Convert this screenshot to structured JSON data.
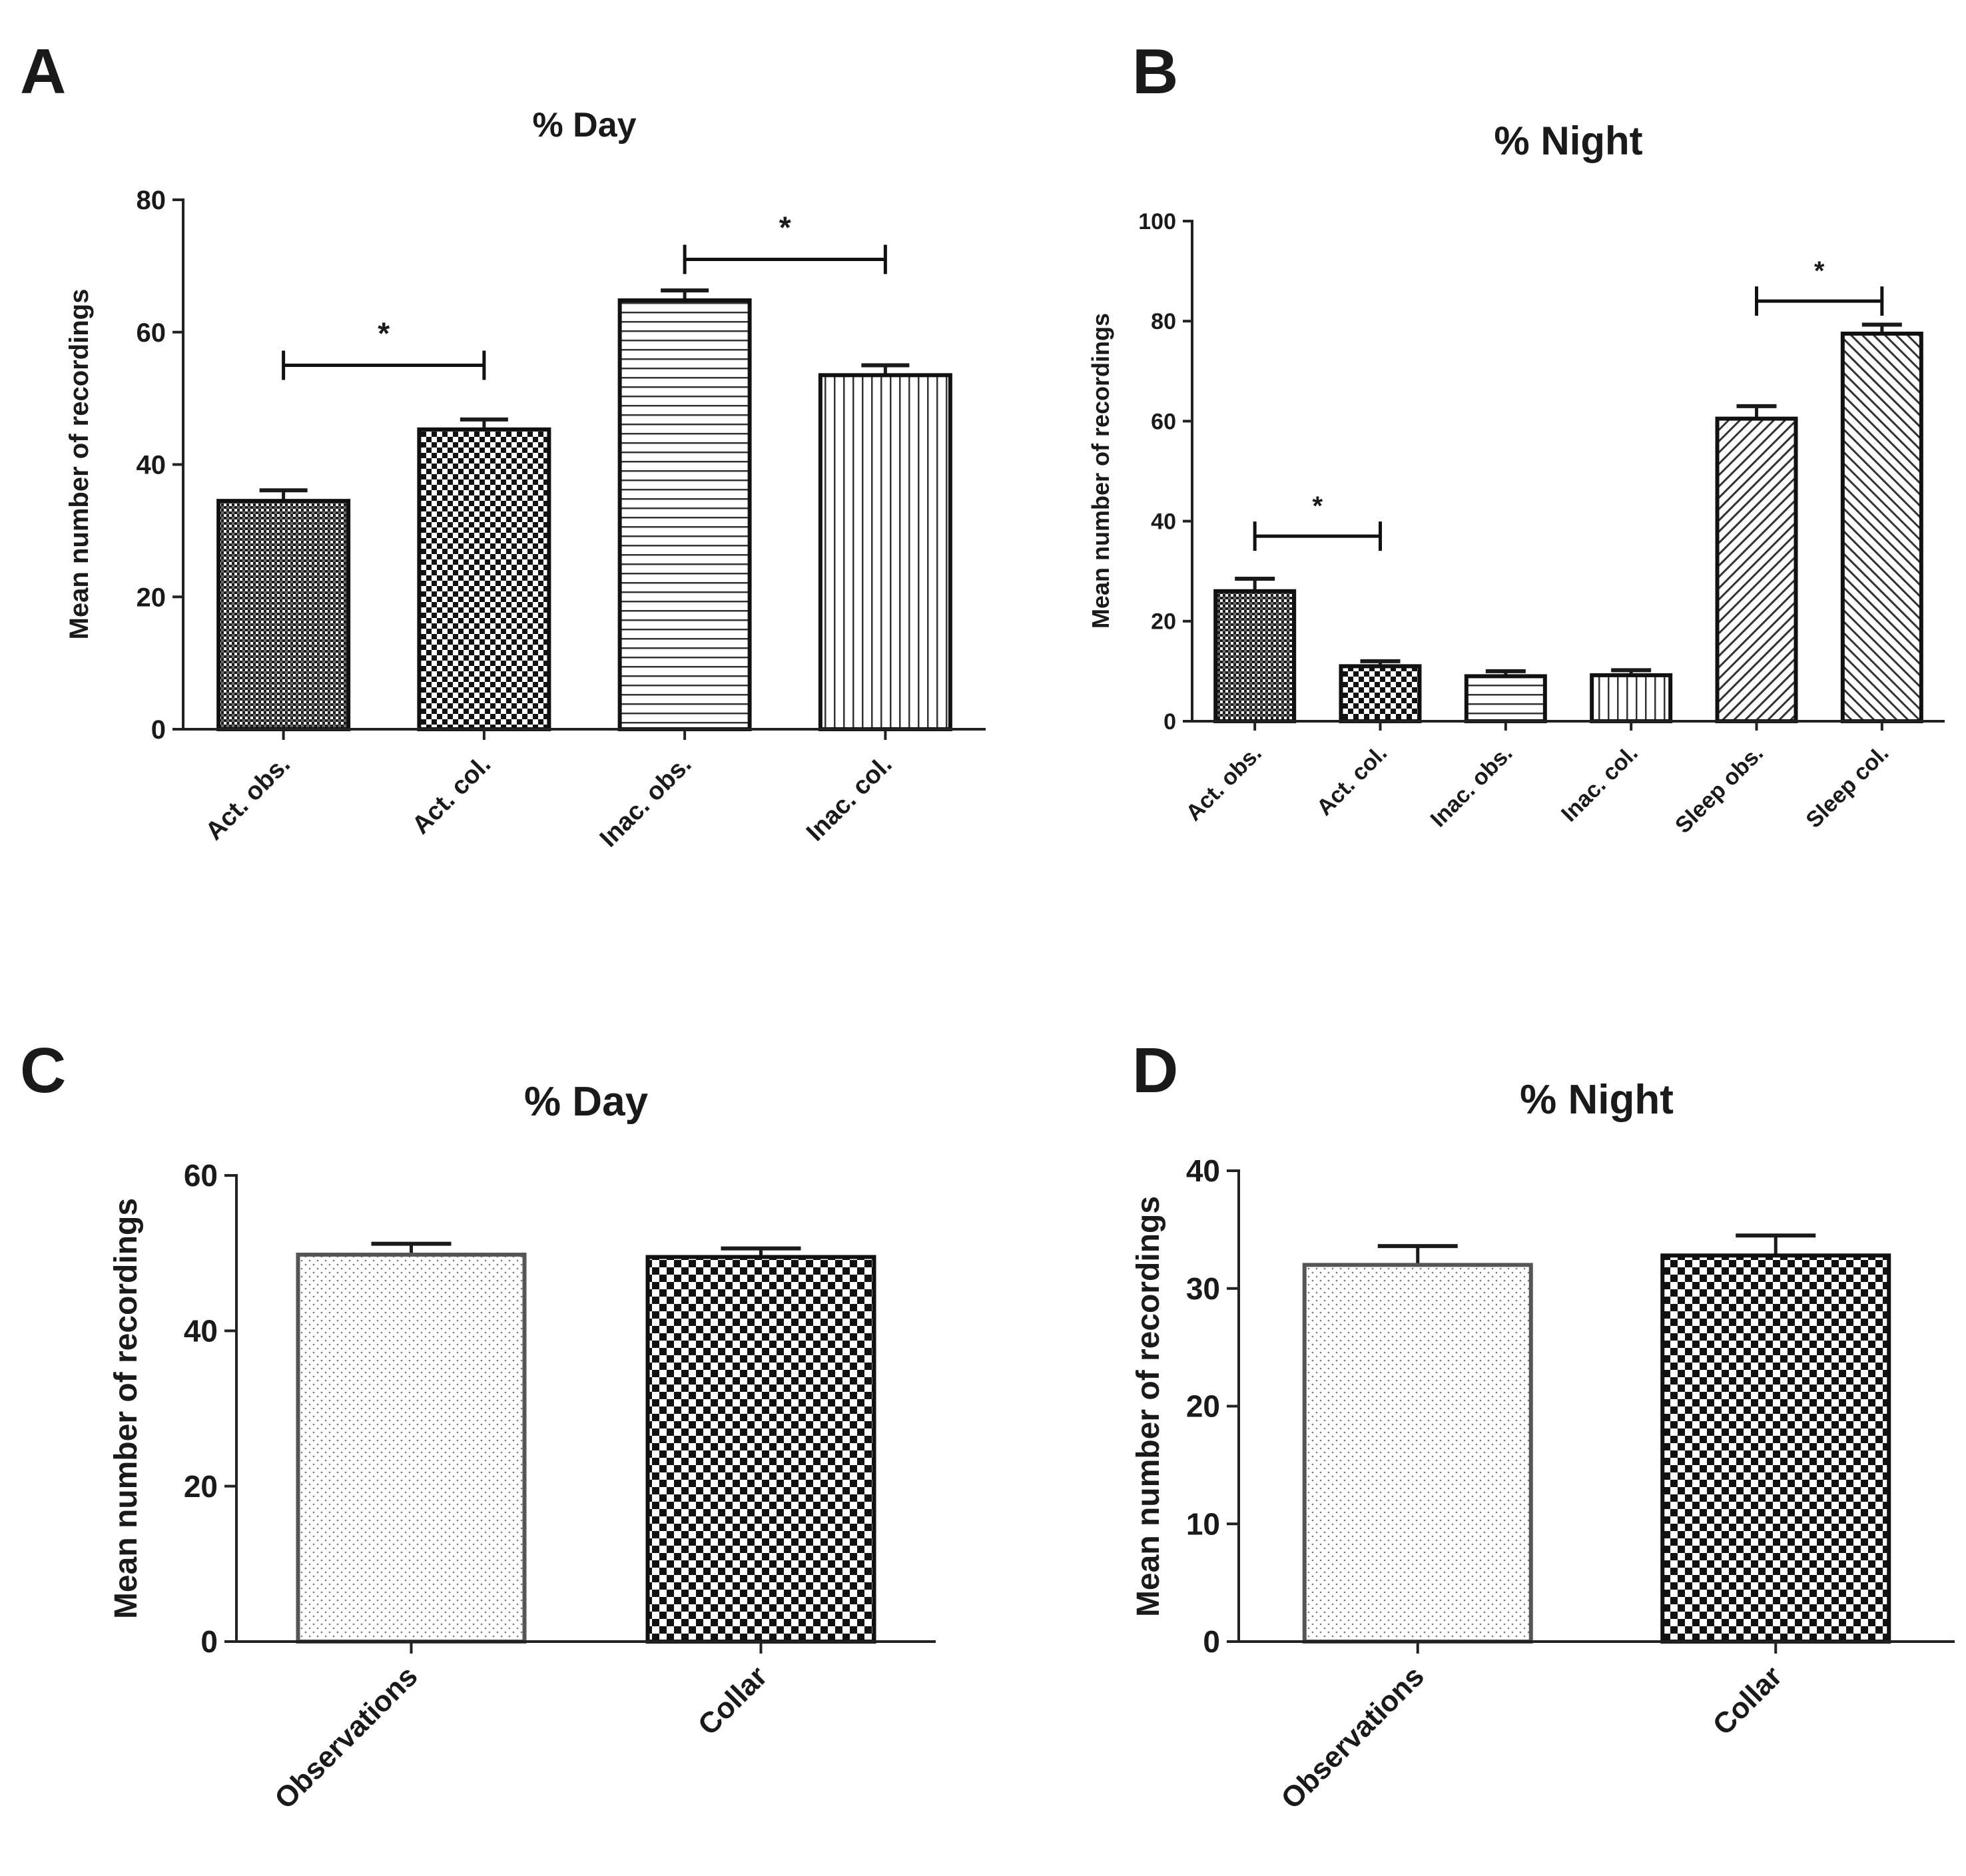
{
  "figure": {
    "panels": [
      "A",
      "B",
      "C",
      "D"
    ]
  },
  "chart_data": [
    {
      "panel": "A",
      "type": "bar",
      "title": "% Day",
      "ylabel": "Mean number of recordings",
      "xlabel": "",
      "ylim": [
        0,
        80
      ],
      "yticks": [
        0,
        20,
        40,
        60,
        80
      ],
      "categories": [
        "Act. obs.",
        "Act. col.",
        "Inac. obs.",
        "Inac. col."
      ],
      "values": [
        34.5,
        45.3,
        64.8,
        53.5
      ],
      "errors": [
        1.6,
        1.5,
        1.5,
        1.5
      ],
      "patterns": [
        "dense-check",
        "check",
        "hlines",
        "vlines"
      ],
      "significance": [
        {
          "from": 0,
          "to": 1,
          "y": 55,
          "label": "*"
        },
        {
          "from": 2,
          "to": 3,
          "y": 71,
          "label": "*"
        }
      ]
    },
    {
      "panel": "B",
      "type": "bar",
      "title": "% Night",
      "ylabel": "Mean number of recordings",
      "xlabel": "",
      "ylim": [
        0,
        100
      ],
      "yticks": [
        0,
        20,
        40,
        60,
        80,
        100
      ],
      "categories": [
        "Act. obs.",
        "Act. col.",
        "Inac. obs.",
        "Inac. col.",
        "Sleep obs.",
        "Sleep col."
      ],
      "values": [
        26,
        11,
        9,
        9.2,
        60.5,
        77.5
      ],
      "errors": [
        2.5,
        1.0,
        1.0,
        1.0,
        2.5,
        1.8
      ],
      "patterns": [
        "dense-check",
        "check",
        "hlines",
        "vlines",
        "diag",
        "diag-rev"
      ],
      "significance": [
        {
          "from": 0,
          "to": 1,
          "y": 37,
          "label": "*"
        },
        {
          "from": 4,
          "to": 5,
          "y": 84,
          "label": "*"
        }
      ]
    },
    {
      "panel": "C",
      "type": "bar",
      "title": "% Day",
      "ylabel": "Mean number of recordings",
      "xlabel": "",
      "ylim": [
        0,
        60
      ],
      "yticks": [
        0,
        20,
        40,
        60
      ],
      "categories": [
        "Observations",
        "Collar"
      ],
      "values": [
        49.8,
        49.5
      ],
      "errors": [
        1.4,
        1.1
      ],
      "patterns": [
        "dots",
        "big-check"
      ],
      "significance": []
    },
    {
      "panel": "D",
      "type": "bar",
      "title": "% Night",
      "ylabel": "Mean number of recordings",
      "xlabel": "",
      "ylim": [
        0,
        40
      ],
      "yticks": [
        0,
        10,
        20,
        30,
        40
      ],
      "categories": [
        "Observations",
        "Collar"
      ],
      "values": [
        32,
        32.8
      ],
      "errors": [
        1.6,
        1.7
      ],
      "patterns": [
        "dots",
        "big-check"
      ],
      "significance": []
    }
  ]
}
